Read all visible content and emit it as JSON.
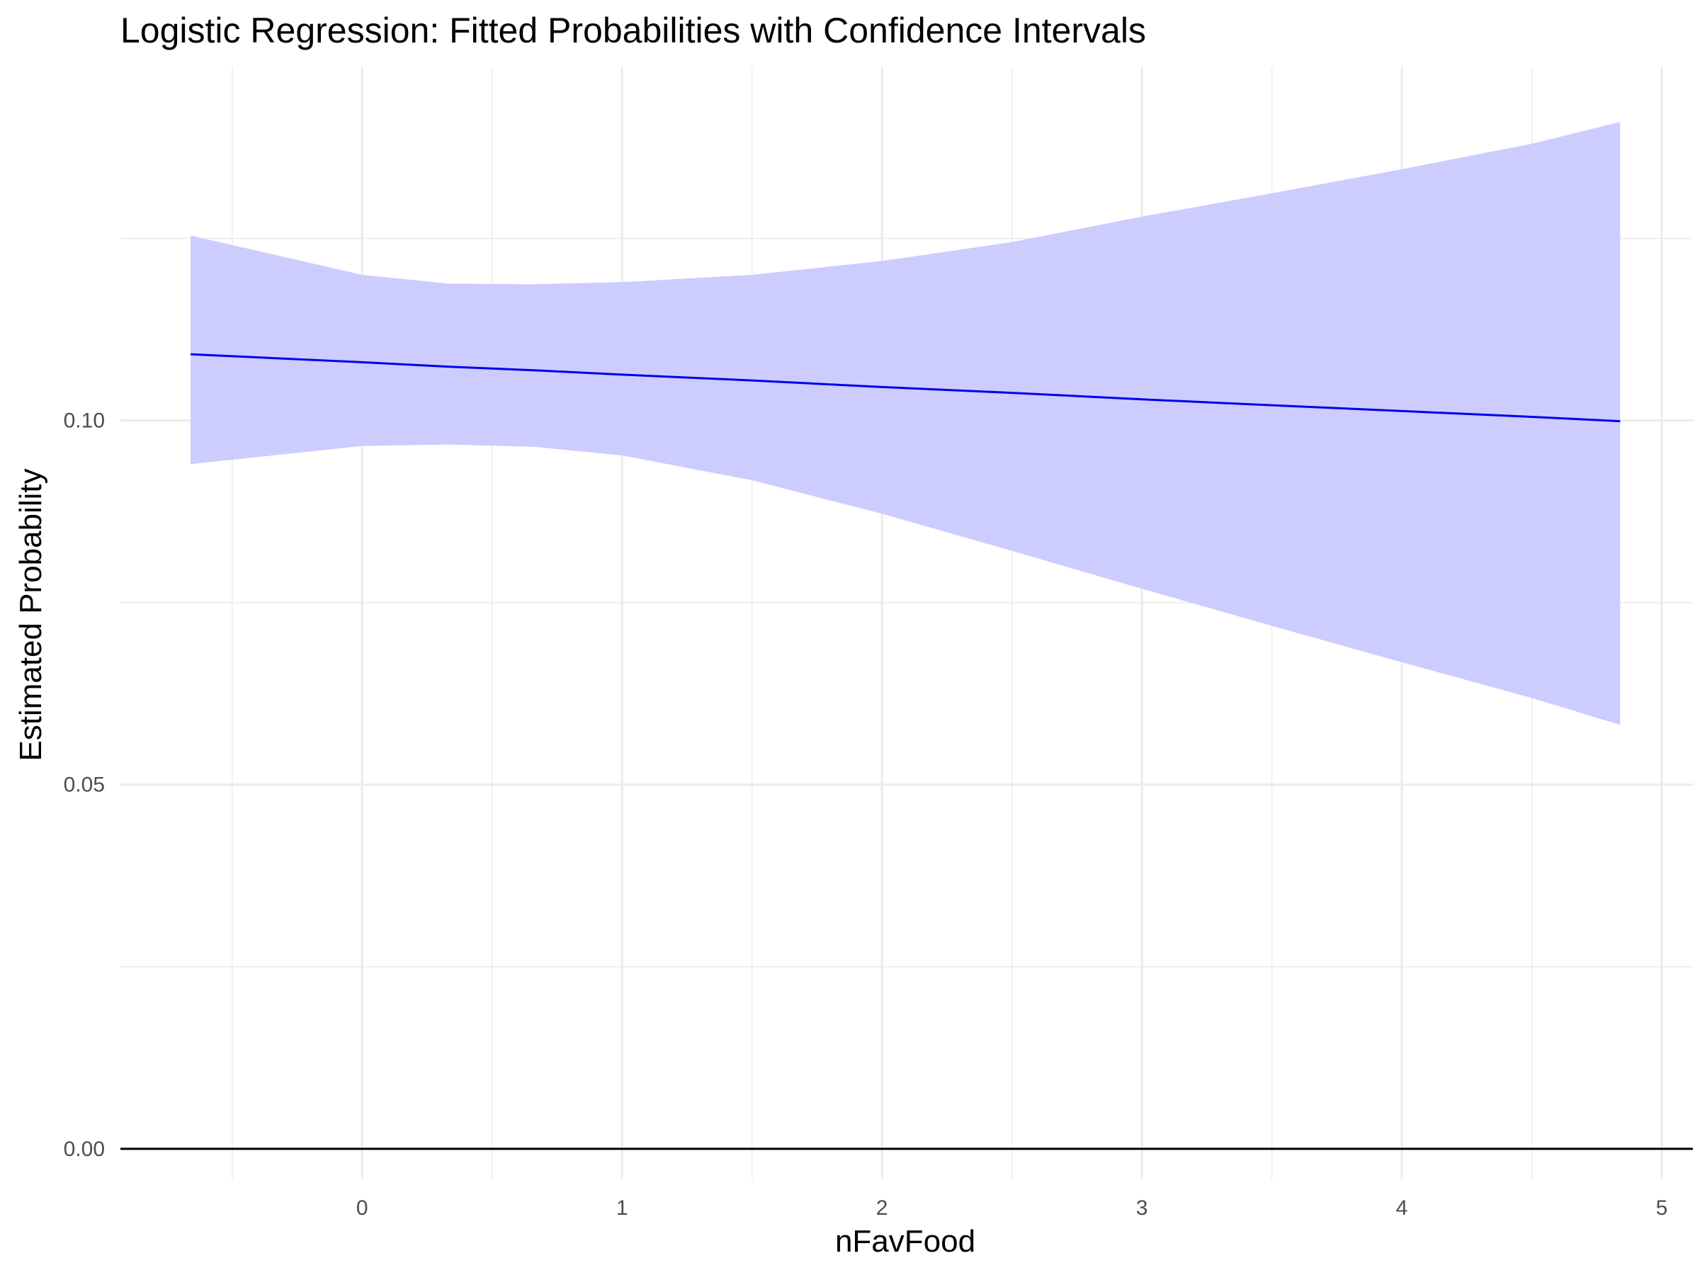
{
  "chart_data": {
    "type": "line",
    "title": "Logistic Regression: Fitted Probabilities with Confidence Intervals",
    "xlabel": "nFavFood",
    "ylabel": "Estimated Probability",
    "xlim": [
      -0.93,
      5.12
    ],
    "ylim": [
      -0.0042,
      0.1485
    ],
    "x_ticks": [
      0,
      1,
      2,
      3,
      4,
      5
    ],
    "x_tick_labels": [
      "0",
      "1",
      "2",
      "3",
      "4",
      "5"
    ],
    "y_ticks": [
      0.0,
      0.05,
      0.1
    ],
    "y_tick_labels": [
      "0.00",
      "0.05",
      "0.10"
    ],
    "grid": true,
    "hline": 0.0,
    "colors": {
      "line": "#0000ee",
      "band": "#ccccff",
      "grid": "#ebebeb",
      "hline": "#000000"
    },
    "x": [
      -0.66,
      0.0,
      0.33,
      0.66,
      1.0,
      1.5,
      2.0,
      2.5,
      3.0,
      3.5,
      4.0,
      4.5,
      4.84
    ],
    "fit": [
      0.1091,
      0.108,
      0.1074,
      0.1069,
      0.1063,
      0.1055,
      0.1046,
      0.1038,
      0.1029,
      0.1021,
      0.1013,
      0.1005,
      0.0999
    ],
    "lower": [
      0.094,
      0.0965,
      0.0967,
      0.0964,
      0.0952,
      0.0918,
      0.0872,
      0.0821,
      0.0769,
      0.0718,
      0.0668,
      0.0619,
      0.0582
    ],
    "upper": [
      0.1254,
      0.12,
      0.1188,
      0.1187,
      0.119,
      0.12,
      0.1219,
      0.1245,
      0.128,
      0.1312,
      0.1345,
      0.138,
      0.141
    ]
  }
}
